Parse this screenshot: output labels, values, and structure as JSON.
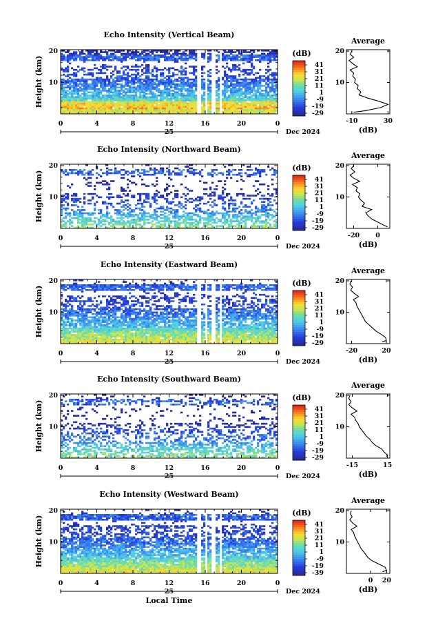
{
  "chart_data": [
    {
      "type": "heatmap",
      "title": "Echo Intensity (Vertical Beam)",
      "ylabel": "Height (km)",
      "y_ticks": [
        "20",
        "10"
      ],
      "x_ticks": [
        "0",
        "4",
        "8",
        "12",
        "16",
        "20",
        "0"
      ],
      "date_day": "25",
      "date_label": "Dec 2024",
      "colorbar_unit": "(dB)",
      "colorbar_ticks": [
        "41",
        "31",
        "21",
        "11",
        "1",
        "-9",
        "-19",
        "-29"
      ],
      "average": {
        "title": "Average",
        "xlabel": "(dB)",
        "x_ticks": [
          "-10",
          "30"
        ],
        "y_ticks": [
          "20",
          "10"
        ],
        "xlim": [
          -16,
          32
        ],
        "profile": [
          [
            -8,
            0.5
          ],
          [
            5,
            1
          ],
          [
            22,
            2
          ],
          [
            30,
            3
          ],
          [
            20,
            4
          ],
          [
            8,
            5
          ],
          [
            -2,
            6
          ],
          [
            0,
            7
          ],
          [
            -4,
            8
          ],
          [
            -3,
            9
          ],
          [
            -7,
            10
          ],
          [
            -6,
            11
          ],
          [
            -9,
            12
          ],
          [
            -8,
            13
          ],
          [
            -12,
            14
          ],
          [
            -4,
            15
          ],
          [
            -9,
            16
          ],
          [
            -13,
            17
          ],
          [
            -8,
            18
          ],
          [
            -12,
            19
          ],
          [
            -10,
            20
          ]
        ]
      }
    },
    {
      "type": "heatmap",
      "title": "Echo Intensity (Northward Beam)",
      "ylabel": "Height (km)",
      "y_ticks": [
        "20",
        "10"
      ],
      "x_ticks": [
        "0",
        "4",
        "8",
        "12",
        "16",
        "20",
        "0"
      ],
      "date_day": "25",
      "date_label": "Dec 2024",
      "colorbar_unit": "(dB)",
      "colorbar_ticks": [
        "41",
        "31",
        "21",
        "11",
        "1",
        "-9",
        "-19",
        "-29"
      ],
      "average": {
        "title": "Average",
        "xlabel": "(dB)",
        "x_ticks": [
          "-20",
          "0"
        ],
        "y_ticks": [
          "20",
          "10"
        ],
        "xlim": [
          -26,
          10
        ],
        "profile": [
          [
            8,
            0.5
          ],
          [
            5,
            1
          ],
          [
            0,
            2
          ],
          [
            -5,
            3
          ],
          [
            -8,
            4
          ],
          [
            -10,
            5
          ],
          [
            -5,
            6
          ],
          [
            -13,
            7
          ],
          [
            -11,
            8
          ],
          [
            -14,
            9
          ],
          [
            -16,
            10
          ],
          [
            -15,
            11
          ],
          [
            -18,
            12
          ],
          [
            -17,
            13
          ],
          [
            -21,
            14
          ],
          [
            -15,
            15
          ],
          [
            -20,
            16
          ],
          [
            -23,
            17
          ],
          [
            -19,
            18
          ],
          [
            -22,
            19
          ],
          [
            -20,
            20
          ]
        ]
      }
    },
    {
      "type": "heatmap",
      "title": "Echo Intensity (Eastward Beam)",
      "ylabel": "Height (km)",
      "y_ticks": [
        "20",
        "10"
      ],
      "x_ticks": [
        "0",
        "4",
        "8",
        "12",
        "16",
        "20",
        "0"
      ],
      "date_day": "25",
      "date_label": "Dec 2024",
      "colorbar_unit": "(dB)",
      "colorbar_ticks": [
        "41",
        "31",
        "21",
        "11",
        "1",
        "-9",
        "-19",
        "-29"
      ],
      "average": {
        "title": "Average",
        "xlabel": "(dB)",
        "x_ticks": [
          "-20",
          "20"
        ],
        "y_ticks": [
          "20",
          "10"
        ],
        "xlim": [
          -26,
          24
        ],
        "profile": [
          [
            15,
            0.5
          ],
          [
            20,
            1
          ],
          [
            19,
            2
          ],
          [
            14,
            3
          ],
          [
            8,
            4
          ],
          [
            4,
            5
          ],
          [
            0,
            6
          ],
          [
            -4,
            7
          ],
          [
            -6,
            8
          ],
          [
            -8,
            9
          ],
          [
            -10,
            10
          ],
          [
            -12,
            11
          ],
          [
            -14,
            12
          ],
          [
            -15,
            13
          ],
          [
            -18,
            14
          ],
          [
            -12,
            15
          ],
          [
            -17,
            16
          ],
          [
            -21,
            17
          ],
          [
            -19,
            18
          ],
          [
            -22,
            19
          ],
          [
            -21,
            20
          ]
        ]
      }
    },
    {
      "type": "heatmap",
      "title": "Echo Intensity (Southward Beam)",
      "ylabel": "Height (km)",
      "y_ticks": [
        "20",
        "10"
      ],
      "x_ticks": [
        "0",
        "4",
        "8",
        "12",
        "16",
        "20",
        "0"
      ],
      "date_day": "25",
      "date_label": "Dec 2024",
      "colorbar_unit": "(dB)",
      "colorbar_ticks": [
        "41",
        "31",
        "21",
        "11",
        "1",
        "-9",
        "-19",
        "-29"
      ],
      "average": {
        "title": "Average",
        "xlabel": "(dB)",
        "x_ticks": [
          "-15",
          "15"
        ],
        "y_ticks": [
          "20",
          "10"
        ],
        "xlim": [
          -20,
          17
        ],
        "profile": [
          [
            14,
            0.5
          ],
          [
            15,
            1
          ],
          [
            12,
            2
          ],
          [
            10,
            3
          ],
          [
            5,
            4
          ],
          [
            2,
            5
          ],
          [
            0,
            6
          ],
          [
            -3,
            7
          ],
          [
            -5,
            8
          ],
          [
            -7,
            9
          ],
          [
            -9,
            10
          ],
          [
            -10,
            11
          ],
          [
            -12,
            12
          ],
          [
            -13,
            13
          ],
          [
            -16,
            14
          ],
          [
            -11,
            15
          ],
          [
            -15,
            16
          ],
          [
            -18,
            17
          ],
          [
            -16,
            18
          ],
          [
            -18,
            19
          ],
          [
            -17,
            20
          ]
        ]
      }
    },
    {
      "type": "heatmap",
      "title": "Echo Intensity (Westward Beam)",
      "ylabel": "Height (km)",
      "y_ticks": [
        "20",
        "10"
      ],
      "x_ticks": [
        "0",
        "4",
        "8",
        "12",
        "16",
        "20",
        "0"
      ],
      "date_day": "25",
      "date_label": "Dec 2024",
      "xlabel": "Local Time",
      "colorbar_unit": "(dB)",
      "colorbar_ticks": [
        "41",
        "31",
        "21",
        "11",
        "1",
        "-9",
        "-19",
        "-39"
      ],
      "average": {
        "title": "Average",
        "xlabel": "(dB)",
        "x_ticks": [
          "0",
          "20"
        ],
        "y_ticks": [
          "20",
          "10"
        ],
        "xlim": [
          -30,
          24
        ],
        "profile": [
          [
            15,
            0.5
          ],
          [
            20,
            1
          ],
          [
            18,
            2
          ],
          [
            10,
            3
          ],
          [
            2,
            4
          ],
          [
            -3,
            5
          ],
          [
            -6,
            6
          ],
          [
            -9,
            7
          ],
          [
            -12,
            8
          ],
          [
            -14,
            9
          ],
          [
            -16,
            10
          ],
          [
            -18,
            11
          ],
          [
            -20,
            12
          ],
          [
            -21,
            13
          ],
          [
            -24,
            14
          ],
          [
            -17,
            15
          ],
          [
            -22,
            16
          ],
          [
            -26,
            17
          ],
          [
            -23,
            18
          ],
          [
            -25,
            19
          ],
          [
            -24,
            20
          ]
        ]
      }
    }
  ]
}
